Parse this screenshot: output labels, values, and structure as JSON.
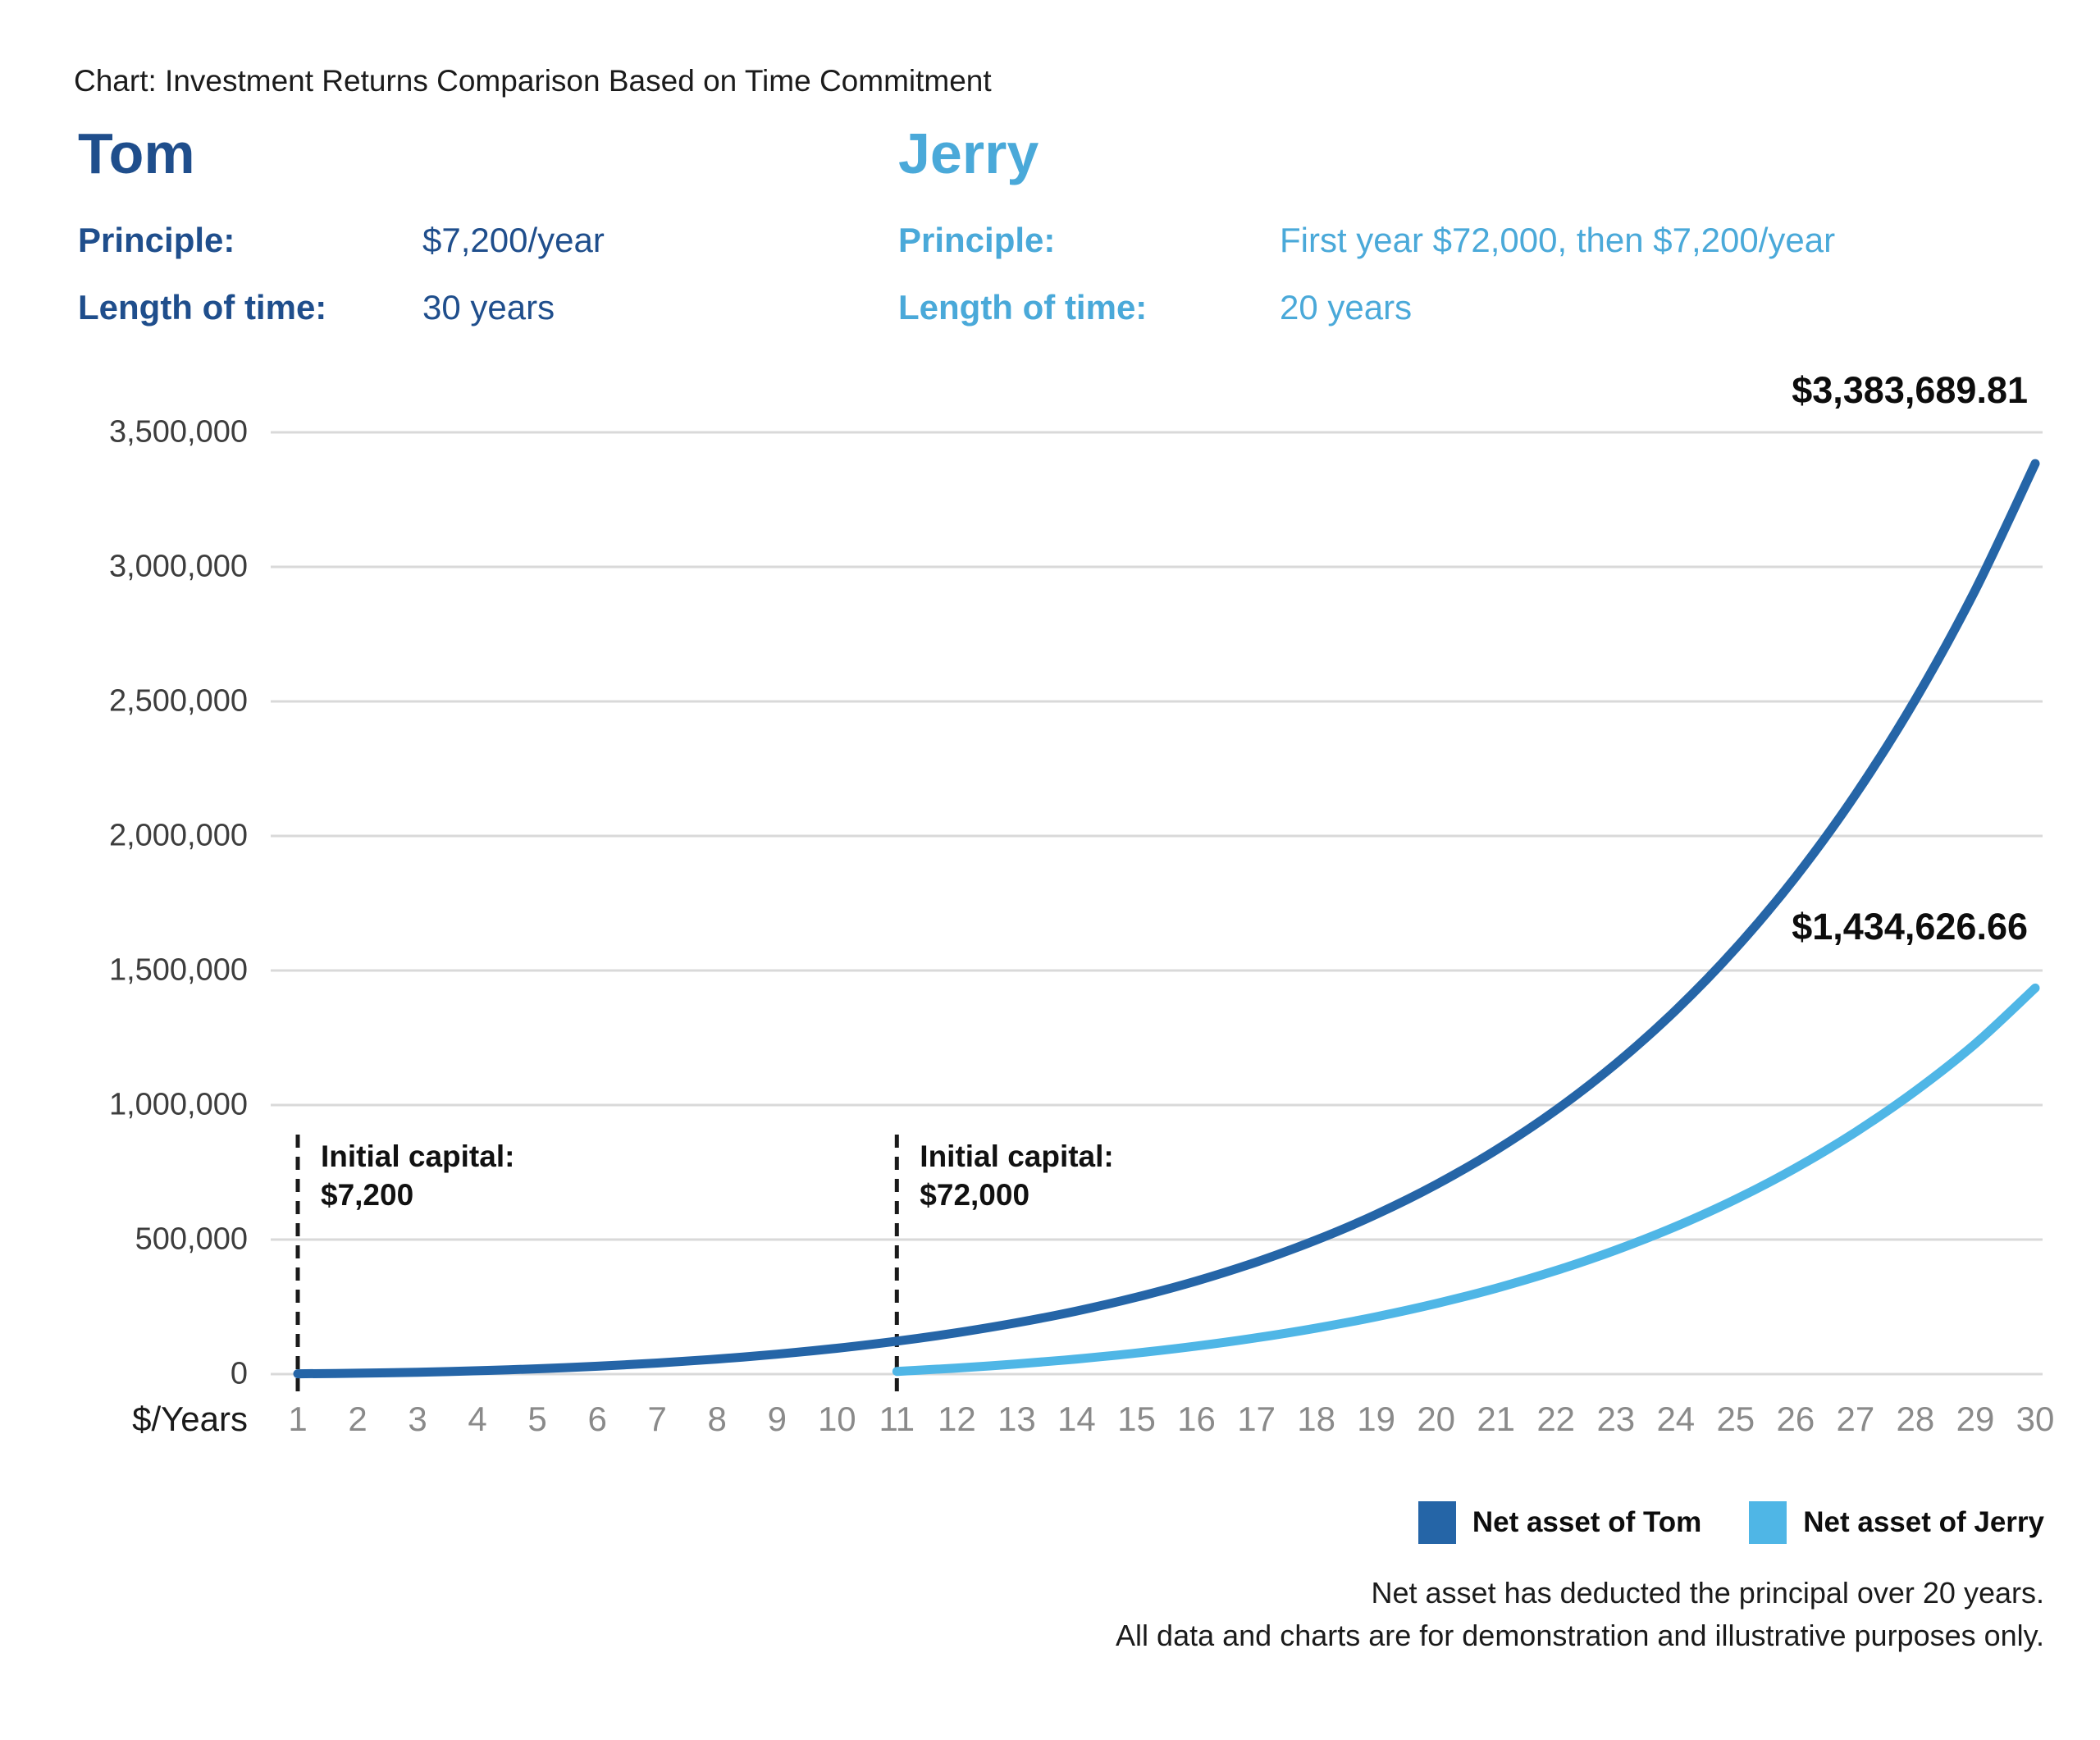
{
  "title": "Chart: Investment Returns Comparison Based on Time Commitment",
  "tom": {
    "name": "Tom",
    "principle_label": "Principle:",
    "principle_value": "$7,200/year",
    "length_label": "Length of time:",
    "length_value": "30 years",
    "text_color": "#1f4e8c"
  },
  "jerry": {
    "name": "Jerry",
    "principle_label": "Principle:",
    "principle_value": "First year $72,000, then $7,200/year",
    "length_label": "Length of time:",
    "length_value": "20 years",
    "text_color": "#4aa9d9"
  },
  "annotations": [
    {
      "label": "Initial capital:",
      "value": "$7,200",
      "year": 1
    },
    {
      "label": "Initial capital:",
      "value": "$72,000",
      "year": 11
    }
  ],
  "footnotes": [
    "Net asset has deducted the principal over 20 years.",
    "All data and charts are for demonstration and illustrative purposes only."
  ],
  "chart_data": {
    "type": "line",
    "title": "Investment Returns Comparison Based on Time Commitment",
    "xlabel": "$/Years",
    "ylabel": "",
    "x": [
      1,
      2,
      3,
      4,
      5,
      6,
      7,
      8,
      9,
      10,
      11,
      12,
      13,
      14,
      15,
      16,
      17,
      18,
      19,
      20,
      21,
      22,
      23,
      24,
      25,
      26,
      27,
      28,
      29,
      30
    ],
    "ylim": [
      0,
      3500000
    ],
    "y_ticks": [
      0,
      500000,
      1000000,
      1500000,
      2000000,
      2500000,
      3000000,
      3500000
    ],
    "grid": true,
    "gridline_color": "#d9d9d9",
    "legend_position": "bottom-right",
    "series": [
      {
        "name": "Net asset of Tom",
        "color": "#2565a7",
        "start_year": 1,
        "end_label": "$3,383,689.81",
        "values": [
          1080,
          3402,
          7152,
          12545,
          19827,
          29281,
          41233,
          56058,
          74187,
          96115,
          122412,
          153734,
          190834,
          234579,
          285966,
          346141,
          416422,
          498325,
          593594,
          704233,
          832548,
          981190,
          1153208,
          1352109,
          1581925,
          1847294,
          2153548,
          2506820,
          2914163,
          3383689.81
        ]
      },
      {
        "name": "Net asset of Jerry",
        "color": "#4fb6e6",
        "start_year": 11,
        "end_label": "$1,434,626.66",
        "values": [
          10080,
          22579,
          37836,
          56237,
          78222,
          104293,
          135022,
          171061,
          213154,
          262148,
          319009,
          384838,
          460891,
          548600,
          649596,
          765739,
          899150,
          1052247,
          1227786,
          1434626.66
        ]
      }
    ]
  }
}
